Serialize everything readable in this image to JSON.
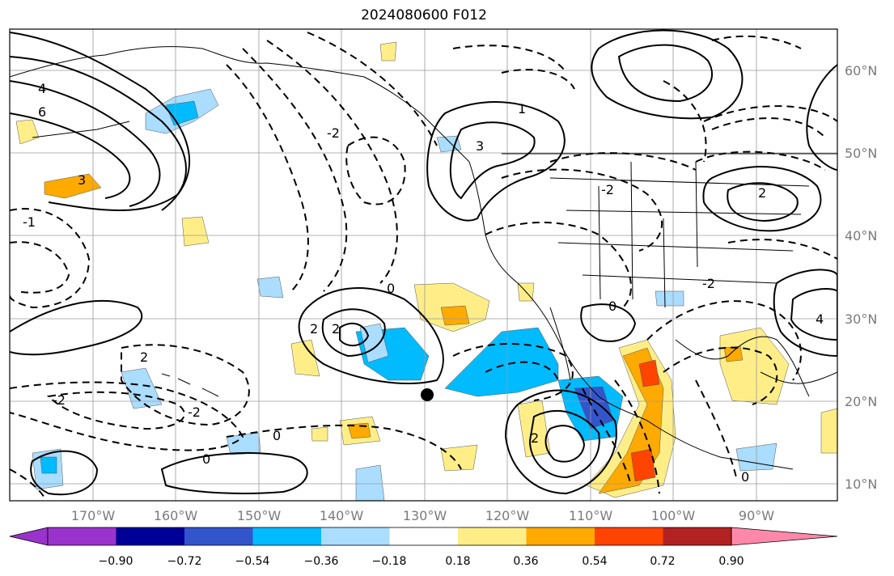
{
  "title": "2024080600 F012",
  "lat_labels": [
    "60°N",
    "50°N",
    "40°N",
    "30°N",
    "20°N",
    "10°N"
  ],
  "lon_labels": [
    "170°W",
    "160°W",
    "150°W",
    "140°W",
    "130°W",
    "120°W",
    "110°W",
    "100°W",
    "90°W"
  ],
  "colorbar": {
    "colors": [
      "#9933cc",
      "#000099",
      "#3355cc",
      "#00bbff",
      "#aaddff",
      "#ffffff",
      "#ffee88",
      "#ffaa00",
      "#ff4400",
      "#b22222",
      "#ff88aa"
    ],
    "labels": [
      "−0.90",
      "−0.72",
      "−0.54",
      "−0.36",
      "−0.18",
      "0.18",
      "0.36",
      "0.54",
      "0.72",
      "0.90"
    ]
  },
  "contour_labels": [
    "0",
    "2",
    "-2",
    "3",
    "4",
    "6",
    "1",
    "-1",
    "0",
    "2",
    "-2",
    "0",
    "2",
    "0",
    "-2",
    "3",
    "2",
    "-2",
    "0",
    "4",
    "2",
    "-2"
  ],
  "marker": "storm-center"
}
